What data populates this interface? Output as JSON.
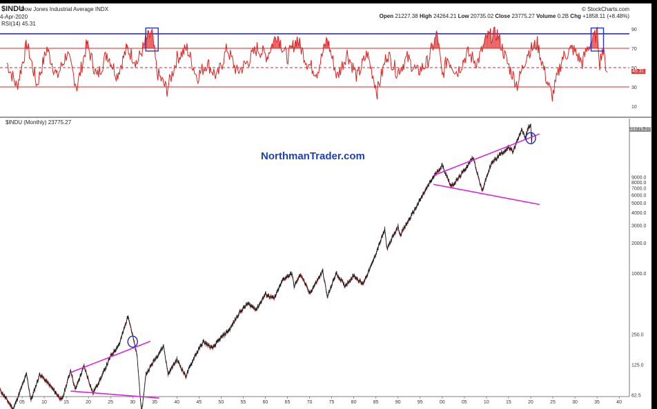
{
  "header": {
    "ticker": "$INDU",
    "full_name": "Dow Jones Industrial Average INDX",
    "date": "4-Apr-2020",
    "brand": "© StockCharts.com",
    "open_label": "Open",
    "open": "21227.38",
    "high_label": "High",
    "high": "24264.21",
    "low_label": "Low",
    "low": "20735.02",
    "close_label": "Close",
    "close": "23775.27",
    "volume_label": "Volume",
    "volume": "0.2B",
    "chg_label": "Chg",
    "chg": "+1858.11 (+8.48%)"
  },
  "rsi_panel": {
    "label": "RSI(14) 45.31",
    "current_value_tag": "45.31"
  },
  "price_panel": {
    "label": "$INDU (Monthly) 23775.27",
    "last_value_tag": "23775.27"
  },
  "watermark": "NorthmanTrader.com",
  "colors": {
    "background": "#ffffff",
    "frame": "#000000",
    "rsi_line": "#e02020",
    "rsi_fill": "#e02020",
    "rsi_overbought_line": "#1a1ab8",
    "rsi_reference_line": "#e02020",
    "price_up": "#1a1a1a",
    "price_down": "#c01818",
    "trendline": "#dd22dd",
    "highlight": "#2233cc",
    "watermark": "#1d3fbf"
  },
  "chart_data": [
    {
      "type": "line",
      "name": "rsi",
      "ylim": [
        0,
        100
      ],
      "yticks": [
        "10",
        "30",
        "50",
        "70",
        "90"
      ],
      "reference_lines": [
        30,
        50,
        70,
        85
      ],
      "x_range": [
        1900,
        2020
      ],
      "points": [
        [
          1900,
          55
        ],
        [
          1902,
          30
        ],
        [
          1904,
          75
        ],
        [
          1906,
          32
        ],
        [
          1908,
          70
        ],
        [
          1910,
          40
        ],
        [
          1912,
          65
        ],
        [
          1914,
          30
        ],
        [
          1916,
          75
        ],
        [
          1918,
          40
        ],
        [
          1920,
          65
        ],
        [
          1922,
          42
        ],
        [
          1924,
          70
        ],
        [
          1926,
          55
        ],
        [
          1928,
          80
        ],
        [
          1929,
          85
        ],
        [
          1930,
          45
        ],
        [
          1932,
          27
        ],
        [
          1934,
          60
        ],
        [
          1936,
          70
        ],
        [
          1938,
          40
        ],
        [
          1940,
          55
        ],
        [
          1942,
          40
        ],
        [
          1944,
          70
        ],
        [
          1946,
          45
        ],
        [
          1948,
          55
        ],
        [
          1950,
          70
        ],
        [
          1952,
          62
        ],
        [
          1954,
          85
        ],
        [
          1956,
          60
        ],
        [
          1958,
          80
        ],
        [
          1960,
          55
        ],
        [
          1962,
          45
        ],
        [
          1964,
          80
        ],
        [
          1966,
          40
        ],
        [
          1968,
          65
        ],
        [
          1970,
          40
        ],
        [
          1972,
          65
        ],
        [
          1974,
          25
        ],
        [
          1976,
          65
        ],
        [
          1978,
          45
        ],
        [
          1980,
          60
        ],
        [
          1982,
          45
        ],
        [
          1984,
          55
        ],
        [
          1986,
          85
        ],
        [
          1987,
          40
        ],
        [
          1988,
          60
        ],
        [
          1990,
          45
        ],
        [
          1992,
          65
        ],
        [
          1994,
          55
        ],
        [
          1996,
          82
        ],
        [
          1998,
          85
        ],
        [
          2000,
          55
        ],
        [
          2002,
          32
        ],
        [
          2004,
          65
        ],
        [
          2006,
          75
        ],
        [
          2008,
          35
        ],
        [
          2009,
          20
        ],
        [
          2011,
          60
        ],
        [
          2013,
          70
        ],
        [
          2015,
          55
        ],
        [
          2016,
          70
        ],
        [
          2017,
          78
        ],
        [
          2018,
          86
        ],
        [
          2018.5,
          55
        ],
        [
          2019,
          70
        ],
        [
          2020,
          45
        ]
      ],
      "highlighted_periods": [
        1929,
        2018
      ]
    },
    {
      "type": "line",
      "name": "$INDU (Monthly)",
      "scale": "log",
      "ylim": [
        60,
        30000
      ],
      "y_tick_labels": [
        "62.5",
        "125.0",
        "250.0",
        "1000.0",
        "2000.0",
        "3000.0",
        "4000.0",
        "5000.0",
        "6000.0",
        "7000.0",
        "8000.0",
        "9000.0"
      ],
      "y_tick_values": [
        62.5,
        125,
        250,
        1000,
        2000,
        3000,
        4000,
        5000,
        6000,
        7000,
        8000,
        9000
      ],
      "x_tick_labels": [
        "05",
        "10",
        "15",
        "20",
        "25",
        "30",
        "35",
        "40",
        "45",
        "50",
        "55",
        "60",
        "65",
        "70",
        "75",
        "80",
        "85",
        "90",
        "95",
        "00",
        "05",
        "10",
        "15",
        "20",
        "25",
        "30",
        "35",
        "40"
      ],
      "x_tick_years": [
        1905,
        1910,
        1915,
        1920,
        1925,
        1930,
        1935,
        1940,
        1945,
        1950,
        1955,
        1960,
        1965,
        1970,
        1975,
        1980,
        1985,
        1990,
        1995,
        2000,
        2005,
        2010,
        2015,
        2020,
        2025,
        2030,
        2035,
        2040
      ],
      "x_range": [
        1900,
        2042
      ],
      "points": [
        [
          1900,
          70
        ],
        [
          1903,
          45
        ],
        [
          1906,
          100
        ],
        [
          1907,
          55
        ],
        [
          1909,
          100
        ],
        [
          1911,
          80
        ],
        [
          1914,
          55
        ],
        [
          1916,
          110
        ],
        [
          1917,
          70
        ],
        [
          1919,
          120
        ],
        [
          1921,
          65
        ],
        [
          1923,
          95
        ],
        [
          1925,
          150
        ],
        [
          1927,
          200
        ],
        [
          1929,
          381
        ],
        [
          1930,
          240
        ],
        [
          1931,
          150
        ],
        [
          1932,
          41
        ],
        [
          1933,
          100
        ],
        [
          1935,
          140
        ],
        [
          1937,
          190
        ],
        [
          1938,
          100
        ],
        [
          1940,
          140
        ],
        [
          1942,
          95
        ],
        [
          1944,
          150
        ],
        [
          1946,
          210
        ],
        [
          1948,
          180
        ],
        [
          1950,
          230
        ],
        [
          1952,
          280
        ],
        [
          1954,
          400
        ],
        [
          1956,
          500
        ],
        [
          1958,
          440
        ],
        [
          1960,
          620
        ],
        [
          1962,
          560
        ],
        [
          1964,
          870
        ],
        [
          1966,
          995
        ],
        [
          1966.5,
          740
        ],
        [
          1968,
          980
        ],
        [
          1970,
          630
        ],
        [
          1973,
          1050
        ],
        [
          1974,
          580
        ],
        [
          1976,
          1000
        ],
        [
          1978,
          750
        ],
        [
          1980,
          950
        ],
        [
          1982,
          780
        ],
        [
          1984,
          1200
        ],
        [
          1987,
          2700
        ],
        [
          1987.5,
          1750
        ],
        [
          1990,
          2900
        ],
        [
          1990.5,
          2400
        ],
        [
          1993,
          3700
        ],
        [
          1996,
          6400
        ],
        [
          1998,
          9000
        ],
        [
          2000,
          11700
        ],
        [
          2002,
          7300
        ],
        [
          2003,
          8000
        ],
        [
          2005,
          10500
        ],
        [
          2007,
          14100
        ],
        [
          2009,
          6500
        ],
        [
          2011,
          12000
        ],
        [
          2013,
          15000
        ],
        [
          2015,
          17500
        ],
        [
          2016,
          16000
        ],
        [
          2018,
          26500
        ],
        [
          2018.8,
          22000
        ],
        [
          2019.5,
          28000
        ],
        [
          2020,
          29500
        ],
        [
          2020.2,
          19000
        ],
        [
          2020.3,
          23775
        ]
      ],
      "trendlines": [
        {
          "from": [
            1916,
            104
          ],
          "to": [
            1934,
            212
          ]
        },
        {
          "from": [
            1916,
            68
          ],
          "to": [
            1936,
            58
          ]
        },
        {
          "from": [
            1998,
            9300
          ],
          "to": [
            2022,
            24000
          ]
        },
        {
          "from": [
            1998,
            7600
          ],
          "to": [
            2022,
            4800
          ]
        }
      ],
      "circles": [
        [
          1930,
          210
        ],
        [
          2020,
          21800
        ]
      ]
    }
  ]
}
